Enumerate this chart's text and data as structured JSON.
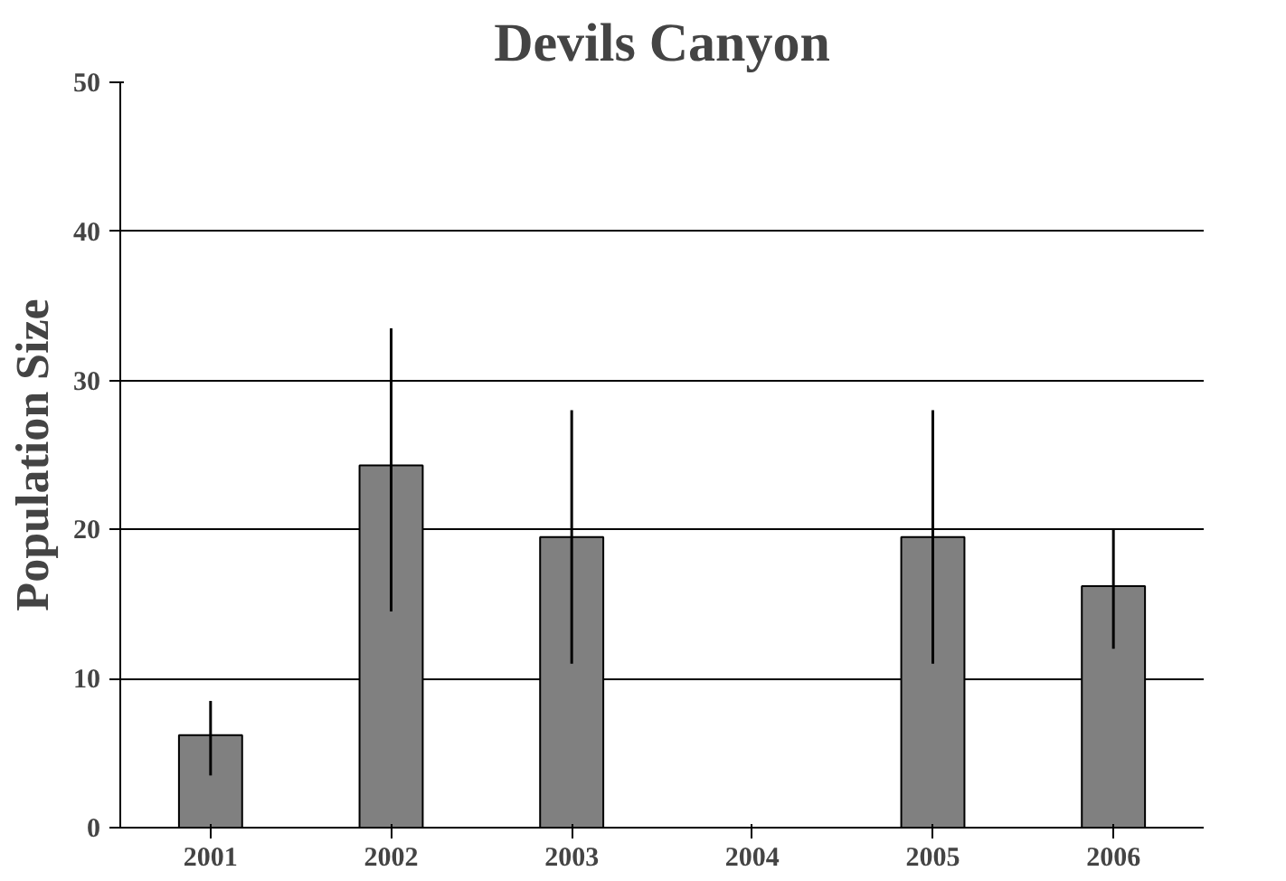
{
  "chart_data": {
    "type": "bar",
    "title": "Devils Canyon",
    "ylabel": "Population Size",
    "categories": [
      "2001",
      "2002",
      "2003",
      "2004",
      "2005",
      "2006"
    ],
    "values": [
      6.2,
      24.3,
      19.5,
      null,
      19.5,
      16.2
    ],
    "errors": [
      [
        3.5,
        8.5
      ],
      [
        14.5,
        33.5
      ],
      [
        11,
        28
      ],
      null,
      [
        11,
        28
      ],
      [
        12,
        20
      ]
    ],
    "color": "#808080",
    "ylim": [
      0,
      50
    ],
    "yticks": [
      0,
      10,
      20,
      30,
      40,
      50
    ],
    "grid": "y"
  }
}
